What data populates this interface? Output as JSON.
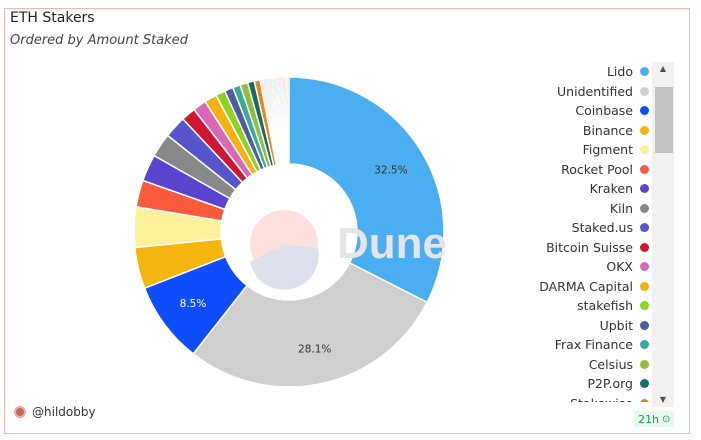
{
  "header": {
    "title": "ETH Stakers",
    "subtitle": "Ordered by Amount Staked"
  },
  "footer": {
    "author": "@hildobby",
    "refresh_badge": "21h"
  },
  "watermark": "Dune",
  "chart_data": {
    "type": "pie",
    "donut": true,
    "slices": [
      {
        "label": "Lido",
        "value": 32.5,
        "value_label": "32.5%",
        "color": "#4baef0"
      },
      {
        "label": "Unidentified",
        "value": 28.1,
        "value_label": "28.1%",
        "color": "#cfcfcf"
      },
      {
        "label": "Coinbase",
        "value": 8.5,
        "value_label": "8.5%",
        "color": "#0f4dff"
      },
      {
        "label": "Binance",
        "value": 4.3,
        "color": "#f5b50f"
      },
      {
        "label": "Figment",
        "value": 4.2,
        "color": "#fff09a"
      },
      {
        "label": "Rocket Pool",
        "value": 2.8,
        "color": "#fb5b3d"
      },
      {
        "label": "Kraken",
        "value": 2.8,
        "color": "#5a44d0"
      },
      {
        "label": "Kiln",
        "value": 2.5,
        "color": "#888888"
      },
      {
        "label": "Staked.us",
        "value": 2.3,
        "color": "#5755cc"
      },
      {
        "label": "Bitcoin Suisse",
        "value": 1.5,
        "color": "#cf1632"
      },
      {
        "label": "OKX",
        "value": 1.4,
        "color": "#d867b8"
      },
      {
        "label": "DARMA Capital",
        "value": 1.3,
        "color": "#f4b112"
      },
      {
        "label": "stakefish",
        "value": 1.0,
        "color": "#8dd322"
      },
      {
        "label": "Upbit",
        "value": 0.9,
        "color": "#4d5b9f"
      },
      {
        "label": "Frax Finance",
        "value": 0.8,
        "color": "#3aaa9b"
      },
      {
        "label": "Celsius",
        "value": 0.8,
        "color": "#8ebe3e"
      },
      {
        "label": "P2P.org",
        "value": 0.7,
        "color": "#1b6b62"
      },
      {
        "label": "Stakewise",
        "value": 0.6,
        "color": "#e08a1e"
      }
    ],
    "other_small_slices": {
      "count": 30,
      "total_value": 3.0
    },
    "legend_position": "right"
  }
}
